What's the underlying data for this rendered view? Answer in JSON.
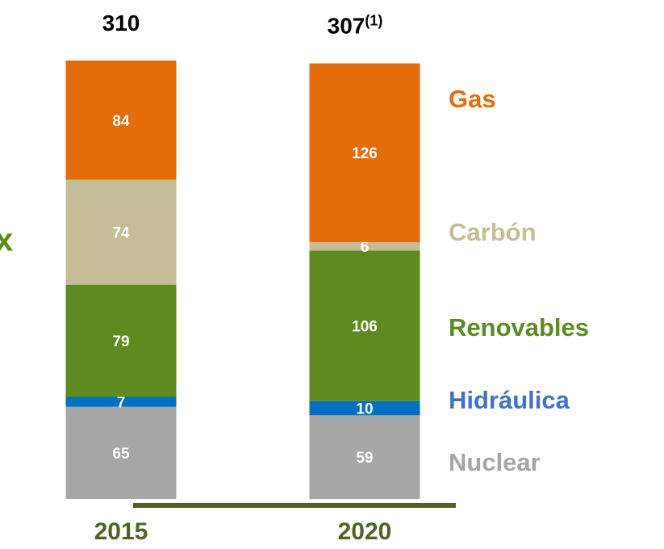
{
  "chart_data": {
    "type": "stacked_bar",
    "categories": [
      "2015",
      "2020"
    ],
    "series": [
      {
        "name": "Nuclear",
        "color": "#a6a6a6",
        "label_color": "#a6a6a6",
        "values": [
          65,
          59
        ]
      },
      {
        "name": "Hidráulica",
        "color": "#0070c0",
        "label_color": "#4472c4",
        "values": [
          7,
          10
        ]
      },
      {
        "name": "Renovables",
        "color": "#5e8b1f",
        "label_color": "#5e8b1f",
        "values": [
          79,
          106
        ]
      },
      {
        "name": "Carbón",
        "color": "#c4bd97",
        "label_color": "#c4bd97",
        "values": [
          74,
          6
        ]
      },
      {
        "name": "Gas",
        "color": "#e46c0a",
        "label_color": "#e46c0a",
        "values": [
          84,
          126
        ]
      }
    ],
    "totals": [
      310,
      307
    ],
    "total_notes": [
      null,
      "(1)"
    ],
    "side_text": "x"
  }
}
